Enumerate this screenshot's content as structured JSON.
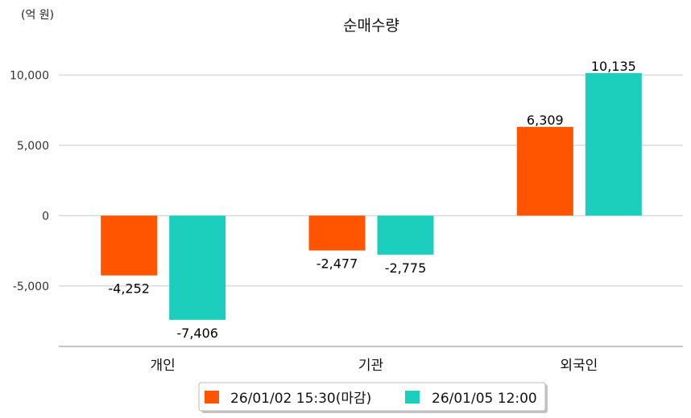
{
  "chart_data": {
    "type": "bar",
    "title": "순매수량",
    "unit_label": "(억 원)",
    "categories": [
      "개인",
      "기관",
      "외국인"
    ],
    "series": [
      {
        "name": "26/01/02 15:30(마감)",
        "color": "#ff5500",
        "values": [
          -4252,
          -2477,
          6309
        ],
        "labels": [
          "-4,252",
          "-2,477",
          "6,309"
        ]
      },
      {
        "name": "26/01/05 12:00",
        "color": "#1ccfbd",
        "values": [
          -7406,
          -2775,
          10135
        ],
        "labels": [
          "-7,406",
          "-2,775",
          "10,135"
        ]
      }
    ],
    "yticks": [
      10000,
      5000,
      0,
      -5000
    ],
    "ytick_labels": [
      "10,000",
      "5,000",
      "0",
      "-5,000"
    ],
    "ylim": [
      -9300,
      11900
    ],
    "grid": true,
    "legend_position": "bottom"
  }
}
